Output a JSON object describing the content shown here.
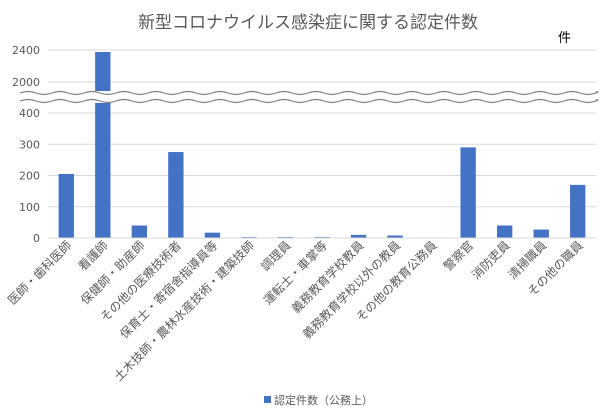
{
  "chart_data": {
    "type": "bar",
    "title": "新型コロナウイルス感染症に関する認定件数",
    "unit_label": "件",
    "categories": [
      "医師・歯科医師",
      "看護師",
      "保健師・助産師",
      "その他の医療技術者",
      "保育士・寄宿舎指導員等",
      "土木技師・農林水産技術・建築技師",
      "調理員",
      "運転士・車掌等",
      "義務教育学校教員",
      "義務教育学校以外の教員",
      "その他の教育公務員",
      "警察官",
      "消防吏員",
      "清掃職員",
      "その他の職員"
    ],
    "series": [
      {
        "name": "認定件数（公務上）",
        "color": "#4472c4",
        "values": [
          205,
          2375,
          40,
          275,
          17,
          3,
          3,
          3,
          10,
          8,
          0,
          290,
          40,
          27,
          170
        ]
      }
    ],
    "y_axis": {
      "lower_range": [
        0,
        400
      ],
      "lower_ticks": [
        0,
        100,
        200,
        300,
        400
      ],
      "upper_range": [
        2000,
        2400
      ],
      "upper_ticks": [
        2000,
        2400
      ],
      "axis_break": true
    },
    "grid": true,
    "legend_position": "bottom"
  }
}
